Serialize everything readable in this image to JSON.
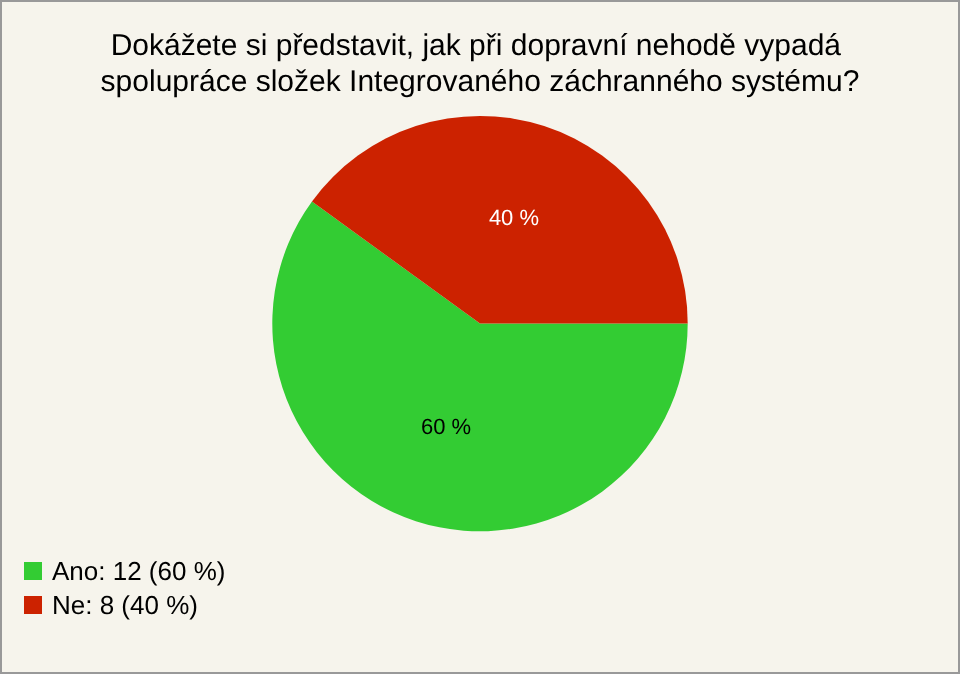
{
  "chart_data": {
    "type": "pie",
    "title": "Dokážete si představit, jak při dopravní nehodě vypadá spolupráce složek Integrovaného záchranného systému?",
    "categories": [
      "Ano: 12 (60 %)",
      "Ne: 8 (40 %)"
    ],
    "values": [
      60,
      40
    ],
    "colors": [
      "#33cc33",
      "#cc2200"
    ],
    "value_labels": [
      "60 %",
      "40 %"
    ],
    "legend": "bottom left"
  }
}
